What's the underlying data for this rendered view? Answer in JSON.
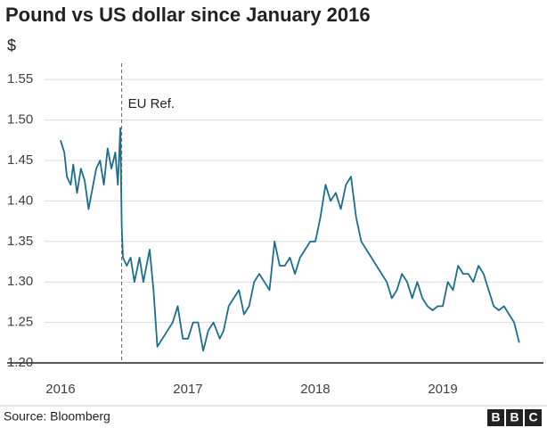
{
  "chart_data": {
    "type": "line",
    "title": "Pound vs US dollar since January 2016",
    "y_label": "$",
    "source": "Source: Bloomberg",
    "logo": [
      "B",
      "B",
      "C"
    ],
    "color": "#1a6f8e",
    "grid": true,
    "xlim": [
      2015.595,
      2019.79
    ],
    "xticks": [
      2016,
      2017,
      2018,
      2019
    ],
    "ylim": [
      1.2,
      1.57
    ],
    "yticks": [
      {
        "value": 1.2,
        "label": "1.20"
      },
      1.25,
      {
        "value": 1.3,
        "label": "1.30"
      },
      1.35,
      {
        "value": 1.4,
        "label": "1.40"
      },
      1.45,
      {
        "value": 1.5,
        "label": "1.50"
      },
      1.55
    ],
    "annotations": [
      {
        "text": "EU Ref.",
        "x": 2016.48
      }
    ],
    "x": [
      2016.0,
      2016.03,
      2016.05,
      2016.08,
      2016.1,
      2016.13,
      2016.16,
      2016.19,
      2016.22,
      2016.25,
      2016.28,
      2016.31,
      2016.34,
      2016.37,
      2016.4,
      2016.43,
      2016.45,
      2016.47,
      2016.48,
      2016.49,
      2016.52,
      2016.55,
      2016.58,
      2016.62,
      2016.65,
      2016.7,
      2016.73,
      2016.76,
      2016.8,
      2016.84,
      2016.88,
      2016.92,
      2016.96,
      2017.0,
      2017.04,
      2017.08,
      2017.12,
      2017.16,
      2017.2,
      2017.25,
      2017.28,
      2017.32,
      2017.36,
      2017.4,
      2017.44,
      2017.48,
      2017.52,
      2017.56,
      2017.6,
      2017.64,
      2017.68,
      2017.72,
      2017.76,
      2017.8,
      2017.84,
      2017.88,
      2017.92,
      2017.96,
      2018.0,
      2018.04,
      2018.08,
      2018.12,
      2018.16,
      2018.2,
      2018.24,
      2018.28,
      2018.32,
      2018.36,
      2018.4,
      2018.44,
      2018.48,
      2018.52,
      2018.56,
      2018.6,
      2018.64,
      2018.68,
      2018.72,
      2018.76,
      2018.8,
      2018.84,
      2018.88,
      2018.92,
      2018.96,
      2019.0,
      2019.04,
      2019.08,
      2019.12,
      2019.16,
      2019.2,
      2019.24,
      2019.28,
      2019.32,
      2019.36,
      2019.4,
      2019.44,
      2019.48,
      2019.52,
      2019.56,
      2019.6
    ],
    "values": [
      1.475,
      1.46,
      1.43,
      1.42,
      1.445,
      1.41,
      1.44,
      1.425,
      1.39,
      1.415,
      1.44,
      1.45,
      1.42,
      1.465,
      1.44,
      1.46,
      1.42,
      1.49,
      1.37,
      1.33,
      1.32,
      1.33,
      1.3,
      1.33,
      1.3,
      1.34,
      1.29,
      1.22,
      1.23,
      1.24,
      1.25,
      1.27,
      1.23,
      1.23,
      1.25,
      1.25,
      1.215,
      1.24,
      1.25,
      1.23,
      1.24,
      1.27,
      1.28,
      1.29,
      1.26,
      1.27,
      1.3,
      1.31,
      1.3,
      1.29,
      1.35,
      1.32,
      1.32,
      1.33,
      1.31,
      1.33,
      1.34,
      1.35,
      1.35,
      1.38,
      1.42,
      1.4,
      1.41,
      1.39,
      1.42,
      1.43,
      1.38,
      1.35,
      1.34,
      1.33,
      1.32,
      1.31,
      1.3,
      1.28,
      1.29,
      1.31,
      1.3,
      1.28,
      1.3,
      1.28,
      1.27,
      1.265,
      1.27,
      1.27,
      1.3,
      1.29,
      1.32,
      1.31,
      1.31,
      1.3,
      1.32,
      1.31,
      1.29,
      1.27,
      1.265,
      1.27,
      1.26,
      1.25,
      1.225
    ]
  }
}
